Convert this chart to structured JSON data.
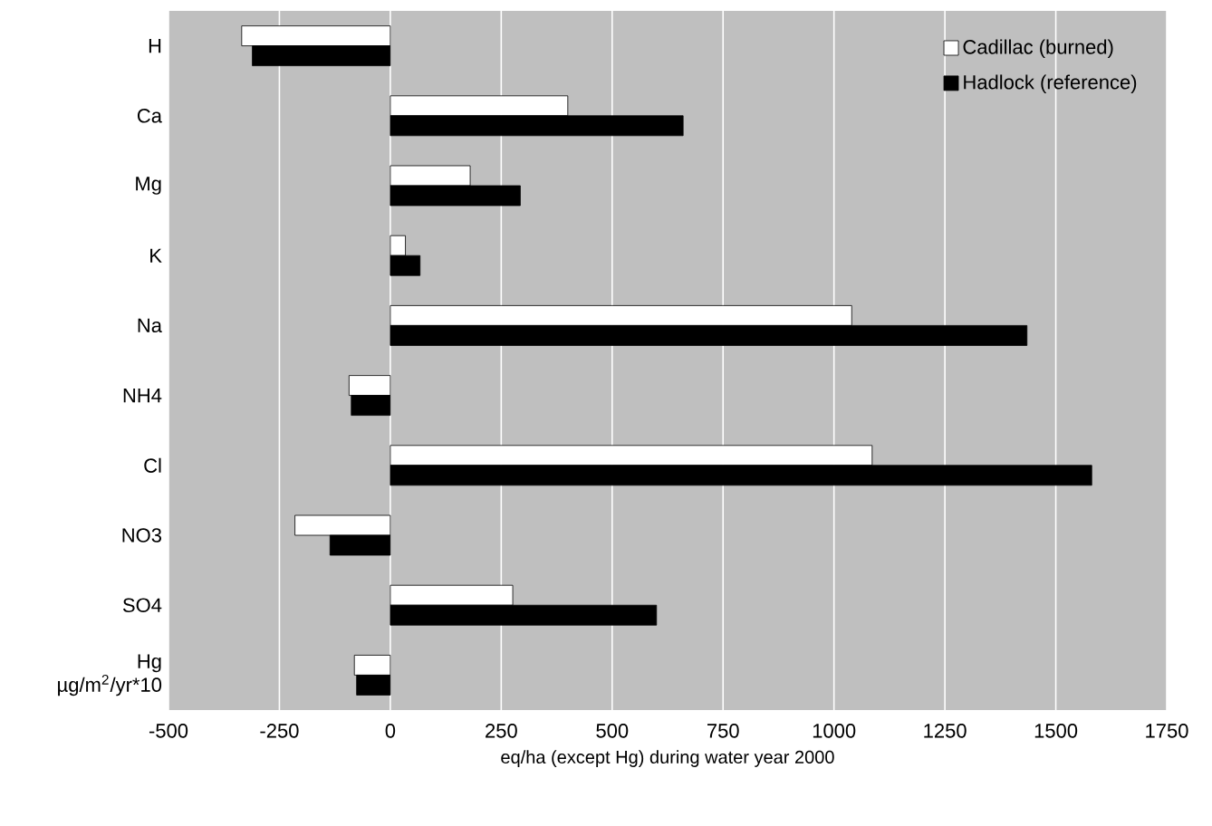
{
  "chart_data": {
    "type": "bar",
    "orientation": "horizontal",
    "xlabel": "eq/ha (except Hg) during water year 2000",
    "categories": [
      "H",
      "Ca",
      "Mg",
      "K",
      "Na",
      "NH4",
      "Cl",
      "NO3",
      "SO4",
      "Hg µg/m$^{2}$/yr*10"
    ],
    "series": [
      {
        "name": "Cadillac (burned)",
        "color": "#ffffff",
        "values": [
          -335,
          400,
          180,
          34,
          1040,
          -93,
          1086,
          -215,
          276,
          -81
        ]
      },
      {
        "name": "Hadlock (reference)",
        "color": "#000000",
        "values": [
          -311,
          660,
          293,
          67,
          1435,
          -88,
          1581,
          -136,
          600,
          -76
        ]
      }
    ],
    "xlim": [
      -500,
      1750
    ],
    "xticks": [
      -500,
      -250,
      0,
      250,
      500,
      750,
      1000,
      1250,
      1500,
      1750
    ],
    "grid": "x",
    "legend": "top right"
  }
}
